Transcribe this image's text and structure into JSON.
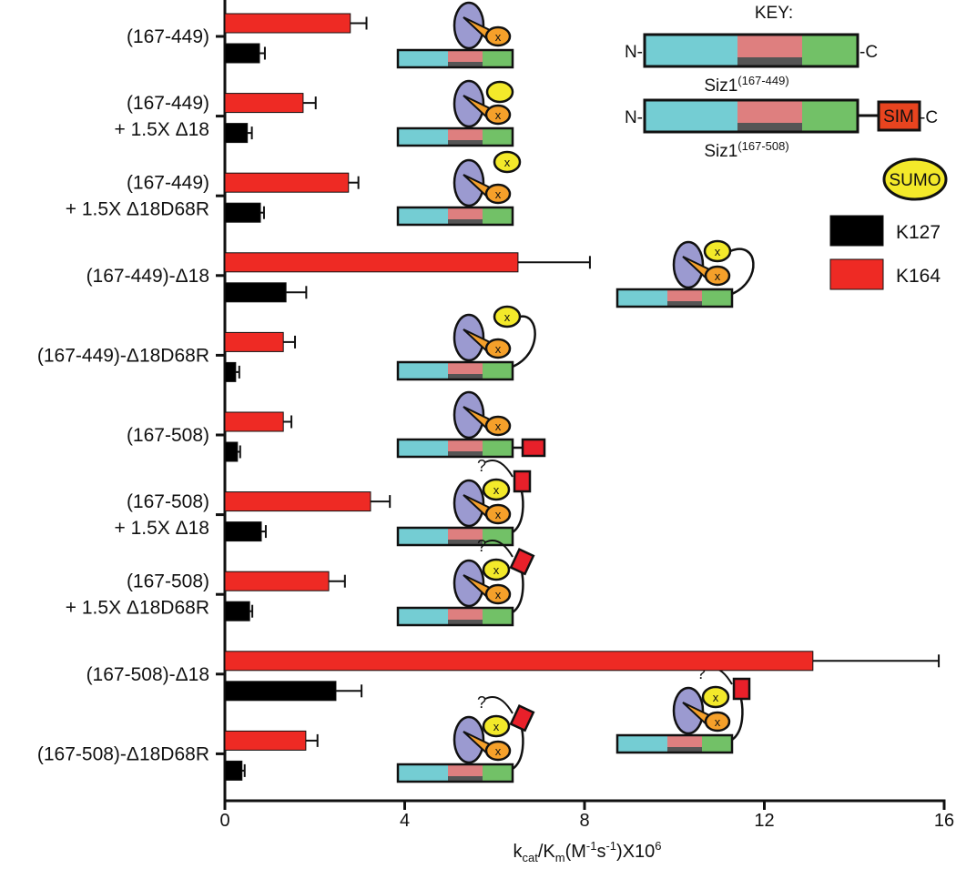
{
  "chart_data": {
    "type": "bar",
    "orientation": "horizontal",
    "categories": [
      [
        "(167-449)"
      ],
      [
        "(167-449)",
        "+ 1.5X Δ18"
      ],
      [
        "(167-449)",
        "+ 1.5X Δ18D68R"
      ],
      [
        "(167-449)-Δ18"
      ],
      [
        "(167-449)-Δ18D68R"
      ],
      [
        "(167-508)"
      ],
      [
        "(167-508)",
        "+ 1.5X Δ18"
      ],
      [
        "(167-508)",
        "+ 1.5X Δ18D68R"
      ],
      [
        "(167-508)-Δ18"
      ],
      [
        "(167-508)-Δ18D68R"
      ]
    ],
    "series": [
      {
        "name": "K127",
        "color": "#000000",
        "values": [
          0.77,
          0.5,
          0.79,
          1.36,
          0.24,
          0.28,
          0.81,
          0.55,
          2.47,
          0.38
        ],
        "errors": [
          0.12,
          0.1,
          0.08,
          0.45,
          0.08,
          0.06,
          0.1,
          0.06,
          0.57,
          0.06
        ]
      },
      {
        "name": "K164",
        "color": "#ee2a24",
        "values": [
          2.79,
          1.74,
          2.75,
          6.52,
          1.3,
          1.3,
          3.24,
          2.31,
          13.08,
          1.8
        ],
        "errors": [
          0.36,
          0.28,
          0.22,
          1.6,
          0.26,
          0.18,
          0.43,
          0.36,
          2.8,
          0.26
        ]
      }
    ],
    "xlim": [
      0,
      16
    ],
    "xticks": [
      0,
      4,
      8,
      12,
      16
    ],
    "xlabel": [
      "k",
      "cat",
      "/K",
      "m",
      "(M",
      "-1",
      "s",
      "-1",
      ")X10",
      "6"
    ],
    "key": {
      "title": "KEY:",
      "n": "N-",
      "c": "-C",
      "construct1": [
        "Siz1",
        "(167-449)"
      ],
      "construct2": [
        "Siz1",
        "(167-508)"
      ],
      "sim": "SIM",
      "sumo": "SUMO"
    },
    "diagram_marks": {
      "question": "?",
      "site": "x"
    }
  }
}
